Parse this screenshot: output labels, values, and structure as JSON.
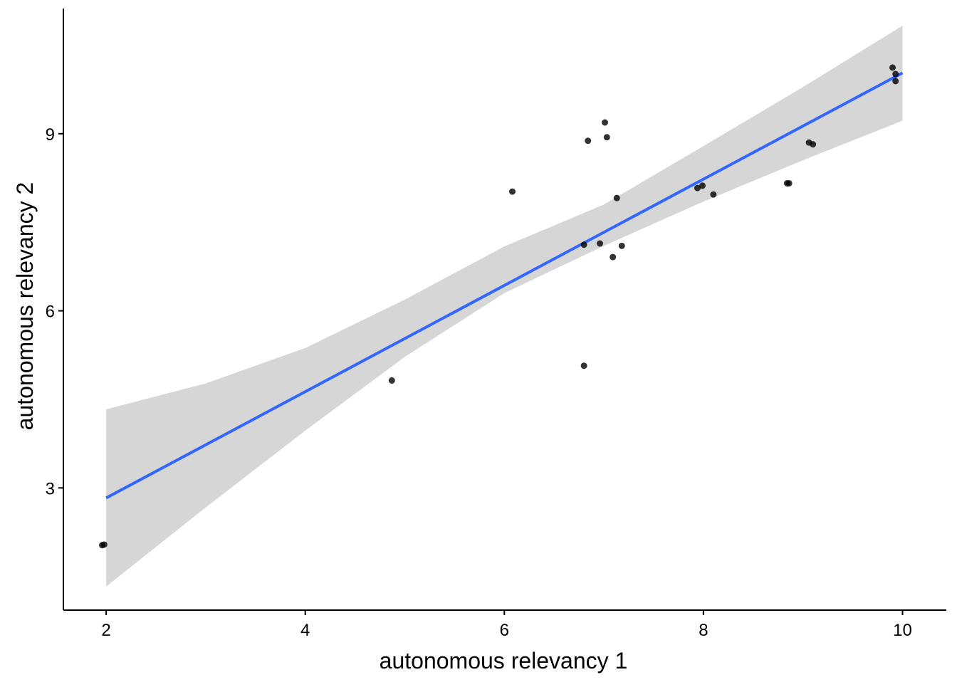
{
  "chart_data": {
    "type": "scatter",
    "xlabel": "autonomous relevancy 1",
    "ylabel": "autonomous relevancy 2",
    "xlim": [
      1.57,
      10.44
    ],
    "ylim": [
      0.93,
      11.12
    ],
    "xticks": [
      2,
      4,
      6,
      8,
      10
    ],
    "yticks": [
      3,
      6,
      9
    ],
    "grid": false,
    "legend": "none",
    "points": [
      {
        "x": 1.96,
        "y": 2.03
      },
      {
        "x": 1.98,
        "y": 2.04
      },
      {
        "x": 4.87,
        "y": 4.82
      },
      {
        "x": 6.08,
        "y": 8.02
      },
      {
        "x": 6.8,
        "y": 5.07
      },
      {
        "x": 6.8,
        "y": 7.12
      },
      {
        "x": 6.84,
        "y": 8.88
      },
      {
        "x": 6.96,
        "y": 7.14
      },
      {
        "x": 7.01,
        "y": 9.19
      },
      {
        "x": 7.03,
        "y": 8.94
      },
      {
        "x": 7.09,
        "y": 6.91
      },
      {
        "x": 7.13,
        "y": 7.91
      },
      {
        "x": 7.18,
        "y": 7.1
      },
      {
        "x": 7.94,
        "y": 8.08
      },
      {
        "x": 7.99,
        "y": 8.12
      },
      {
        "x": 8.1,
        "y": 7.97
      },
      {
        "x": 8.84,
        "y": 8.16
      },
      {
        "x": 8.86,
        "y": 8.16
      },
      {
        "x": 9.06,
        "y": 8.85
      },
      {
        "x": 9.1,
        "y": 8.82
      },
      {
        "x": 9.9,
        "y": 10.12
      },
      {
        "x": 9.93,
        "y": 10.01
      },
      {
        "x": 9.93,
        "y": 9.89
      }
    ],
    "fit_line": {
      "method": "linear",
      "x": [
        2,
        10
      ],
      "y": [
        2.83,
        10.03
      ],
      "ci_lower": [
        {
          "x": 2,
          "y": 1.33
        },
        {
          "x": 3,
          "y": 2.67
        },
        {
          "x": 4,
          "y": 3.97
        },
        {
          "x": 5,
          "y": 5.22
        },
        {
          "x": 6,
          "y": 6.3
        },
        {
          "x": 7,
          "y": 7.1
        },
        {
          "x": 8,
          "y": 7.85
        },
        {
          "x": 9,
          "y": 8.55
        },
        {
          "x": 10,
          "y": 9.22
        }
      ],
      "ci_upper": [
        {
          "x": 2,
          "y": 4.33
        },
        {
          "x": 3,
          "y": 4.77
        },
        {
          "x": 4,
          "y": 5.37
        },
        {
          "x": 5,
          "y": 6.19
        },
        {
          "x": 6,
          "y": 7.09
        },
        {
          "x": 7,
          "y": 7.8
        },
        {
          "x": 8,
          "y": 8.79
        },
        {
          "x": 9,
          "y": 9.79
        },
        {
          "x": 10,
          "y": 10.83
        }
      ],
      "line_color": "#3366FF",
      "band_color": "#D6D6D6"
    },
    "point_color": "#000000"
  }
}
